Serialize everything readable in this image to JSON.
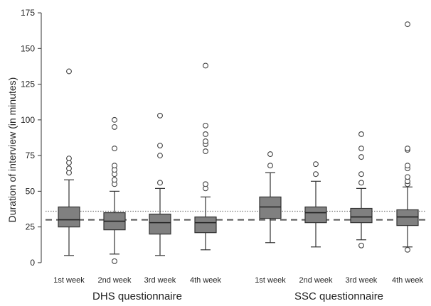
{
  "chart_data": {
    "type": "box",
    "title": "",
    "ylabel": "Duration of interview (in minutes)",
    "ylim": [
      -8,
      180
    ],
    "yticks": [
      0,
      25,
      50,
      75,
      100,
      125,
      150,
      175
    ],
    "groups": [
      "DHS questionnaire",
      "SSC questionnaire"
    ],
    "categories": [
      "1st week",
      "2nd week",
      "3rd week",
      "4th week",
      "1st week",
      "2nd week",
      "3rd week",
      "4th week"
    ],
    "category_group": [
      0,
      0,
      0,
      0,
      1,
      1,
      1,
      1
    ],
    "boxes": [
      {
        "whisker_low": 5,
        "q1": 25,
        "median": 30,
        "q3": 39,
        "whisker_high": 58,
        "outliers": [
          63,
          66,
          70,
          73,
          134
        ]
      },
      {
        "whisker_low": 6,
        "q1": 23,
        "median": 29,
        "q3": 35,
        "whisker_high": 50,
        "outliers": [
          1,
          55,
          58,
          62,
          65,
          68,
          80,
          95,
          100
        ]
      },
      {
        "whisker_low": 5,
        "q1": 20,
        "median": 28,
        "q3": 34,
        "whisker_high": 52,
        "outliers": [
          56,
          75,
          82,
          103
        ]
      },
      {
        "whisker_low": 9,
        "q1": 21,
        "median": 28,
        "q3": 32,
        "whisker_high": 46,
        "outliers": [
          52,
          55,
          78,
          83,
          85,
          90,
          96,
          138
        ]
      },
      {
        "whisker_low": 14,
        "q1": 31,
        "median": 39,
        "q3": 46,
        "whisker_high": 63,
        "outliers": [
          68,
          76
        ]
      },
      {
        "whisker_low": 11,
        "q1": 28,
        "median": 35,
        "q3": 39,
        "whisker_high": 57,
        "outliers": [
          62,
          69
        ]
      },
      {
        "whisker_low": 16,
        "q1": 28,
        "median": 32,
        "q3": 38,
        "whisker_high": 52,
        "outliers": [
          12,
          56,
          62,
          74,
          80,
          90
        ]
      },
      {
        "whisker_low": 11,
        "q1": 26,
        "median": 32,
        "q3": 37,
        "whisker_high": 53,
        "outliers": [
          9,
          55,
          57,
          60,
          66,
          68,
          79,
          80,
          167
        ]
      }
    ],
    "reference_lines": [
      {
        "style": "dashed",
        "value": 30
      },
      {
        "style": "dotted",
        "value": 36
      }
    ],
    "grid": false,
    "colors": {
      "box_fill": "#808080",
      "stroke": "#333333",
      "outlier_stroke": "#444444"
    }
  }
}
